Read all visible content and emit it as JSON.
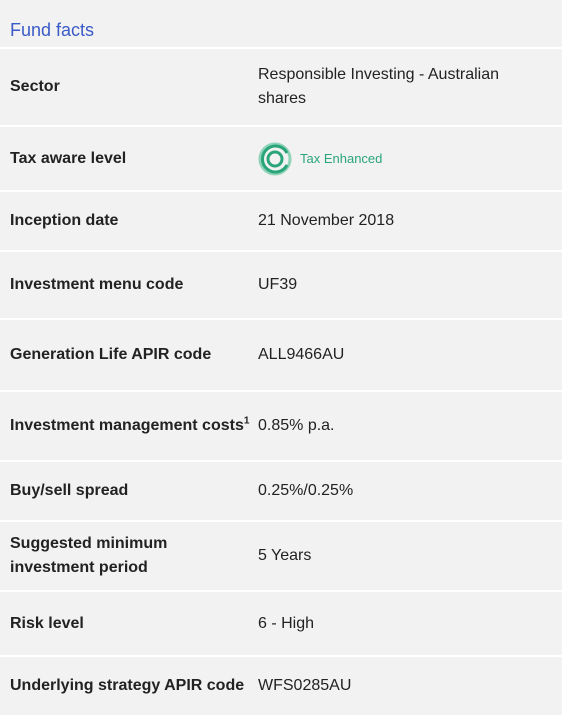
{
  "header": {
    "title": "Fund facts"
  },
  "table": {
    "rows": [
      {
        "label": "Sector",
        "value": "Responsible Investing - Australian shares"
      },
      {
        "label": "Tax aware level",
        "value": "Tax Enhanced"
      },
      {
        "label": "Inception date",
        "value": "21 November 2018"
      },
      {
        "label": "Investment menu code",
        "value": "UF39"
      },
      {
        "label": "Generation Life APIR code",
        "value": "ALL9466AU"
      },
      {
        "label": "Investment management costs",
        "sup": "1",
        "value": "0.85% p.a."
      },
      {
        "label": "Buy/sell spread",
        "value": "0.25%/0.25%"
      },
      {
        "label": "Suggested minimum investment period",
        "value": "5 Years"
      },
      {
        "label": "Risk level",
        "value": "6 - High"
      },
      {
        "label": "Underlying strategy APIR code",
        "value": "WFS0285AU"
      }
    ]
  }
}
